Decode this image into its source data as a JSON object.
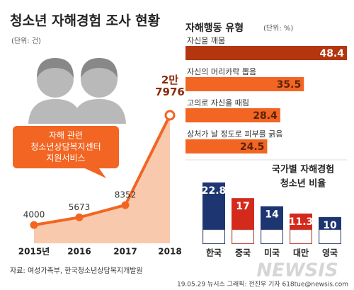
{
  "header": {
    "title": "청소년 자해경험 조사 현황",
    "unit": "(단위: 건)"
  },
  "chart_data": [
    {
      "type": "line",
      "categories": [
        "2015년",
        "2016",
        "2017",
        "2018"
      ],
      "values": [
        4000,
        5673,
        8352,
        27976
      ],
      "value_labels": [
        "4000",
        "5673",
        "8352",
        "2만 7976"
      ],
      "color": "#f26522",
      "area_color": "#f9c9ad",
      "annotation_lines": [
        "자해 관련",
        "청소년상담복지센터",
        "지원서비스"
      ]
    },
    {
      "type": "hbar",
      "title": "자해행동 유형",
      "unit": "(단위: %)",
      "categories": [
        "자신을 깨뭄",
        "자신의 머리카락 뽑음",
        "고의로 자신을 때림",
        "상처가 날 정도로 피부를 긁음"
      ],
      "values": [
        48.4,
        35.5,
        28.4,
        24.5
      ],
      "colors": [
        "#b3360f",
        "#f26522",
        "#f26522",
        "#f26522"
      ]
    },
    {
      "type": "column",
      "title_lines": [
        "국가별 자해경험",
        "청소년 비율"
      ],
      "categories": [
        "한국",
        "중국",
        "미국",
        "대만",
        "영국"
      ],
      "values": [
        22.8,
        17,
        14,
        11.3,
        10
      ],
      "colors": [
        "#1d3672",
        "#d42a1c",
        "#1d3672",
        "#d42a1c",
        "#1d3672"
      ]
    }
  ],
  "footer": {
    "source": "자료: 여성가족부, 한국청소년상담복지개발원",
    "credit": "19.05.29 뉴시스 그래픽: 전진우 기자 618tue@newsis.com",
    "watermark": "NEWSIS"
  }
}
